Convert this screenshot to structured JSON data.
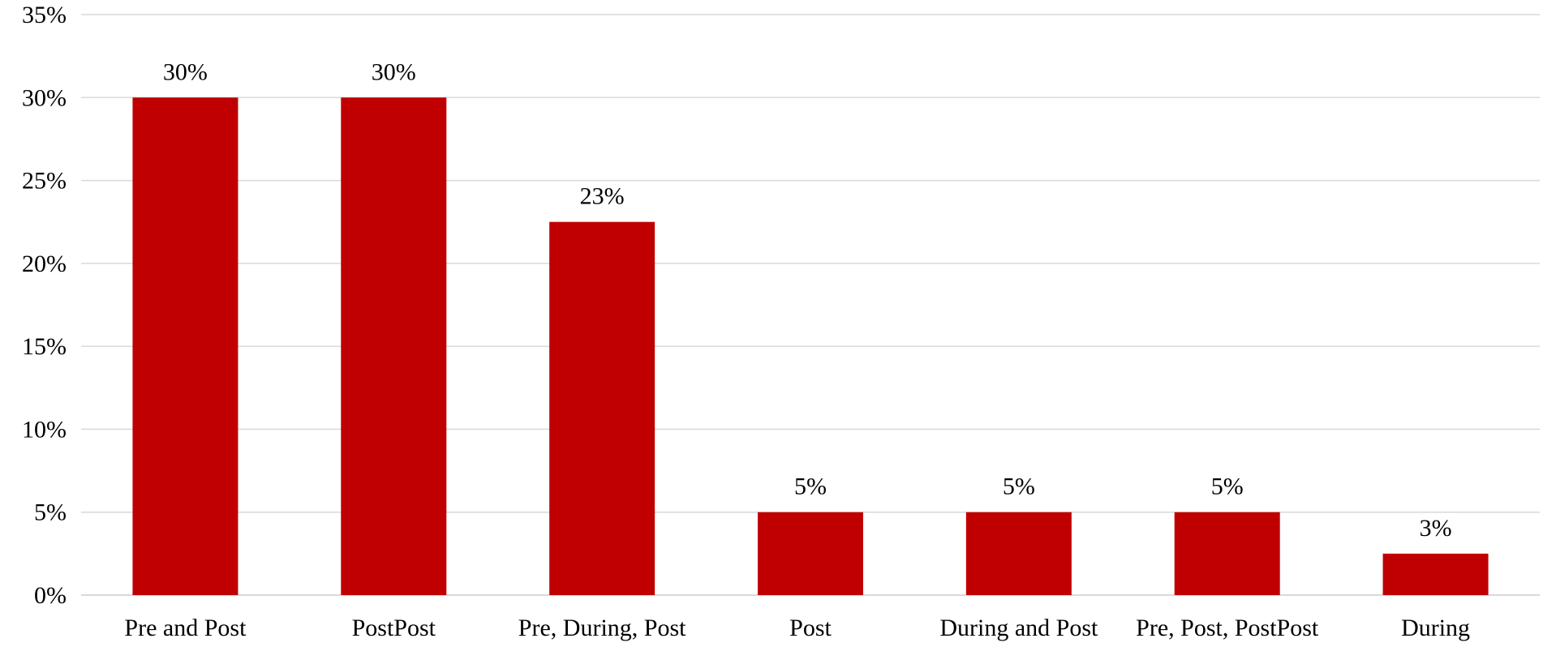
{
  "colors": {
    "bar": "#c00000",
    "grid": "#d9d9d9",
    "text": "#000000",
    "background": "#ffffff"
  },
  "chart_data": {
    "type": "bar",
    "title": "",
    "xlabel": "",
    "ylabel": "",
    "categories": [
      "Pre and Post",
      "PostPost",
      "Pre, During, Post",
      "Post",
      "During and Post",
      "Pre, Post, PostPost",
      "During"
    ],
    "values": [
      30,
      30,
      22.5,
      5,
      5,
      5,
      2.5
    ],
    "data_labels": [
      "30%",
      "30%",
      "23%",
      "5%",
      "5%",
      "5%",
      "3%"
    ],
    "ylim": [
      0,
      35
    ],
    "y_ticks": [
      0,
      5,
      10,
      15,
      20,
      25,
      30,
      35
    ],
    "y_tick_labels": [
      "0%",
      "5%",
      "10%",
      "15%",
      "20%",
      "25%",
      "30%",
      "35%"
    ],
    "grid": true,
    "legend": "none"
  }
}
